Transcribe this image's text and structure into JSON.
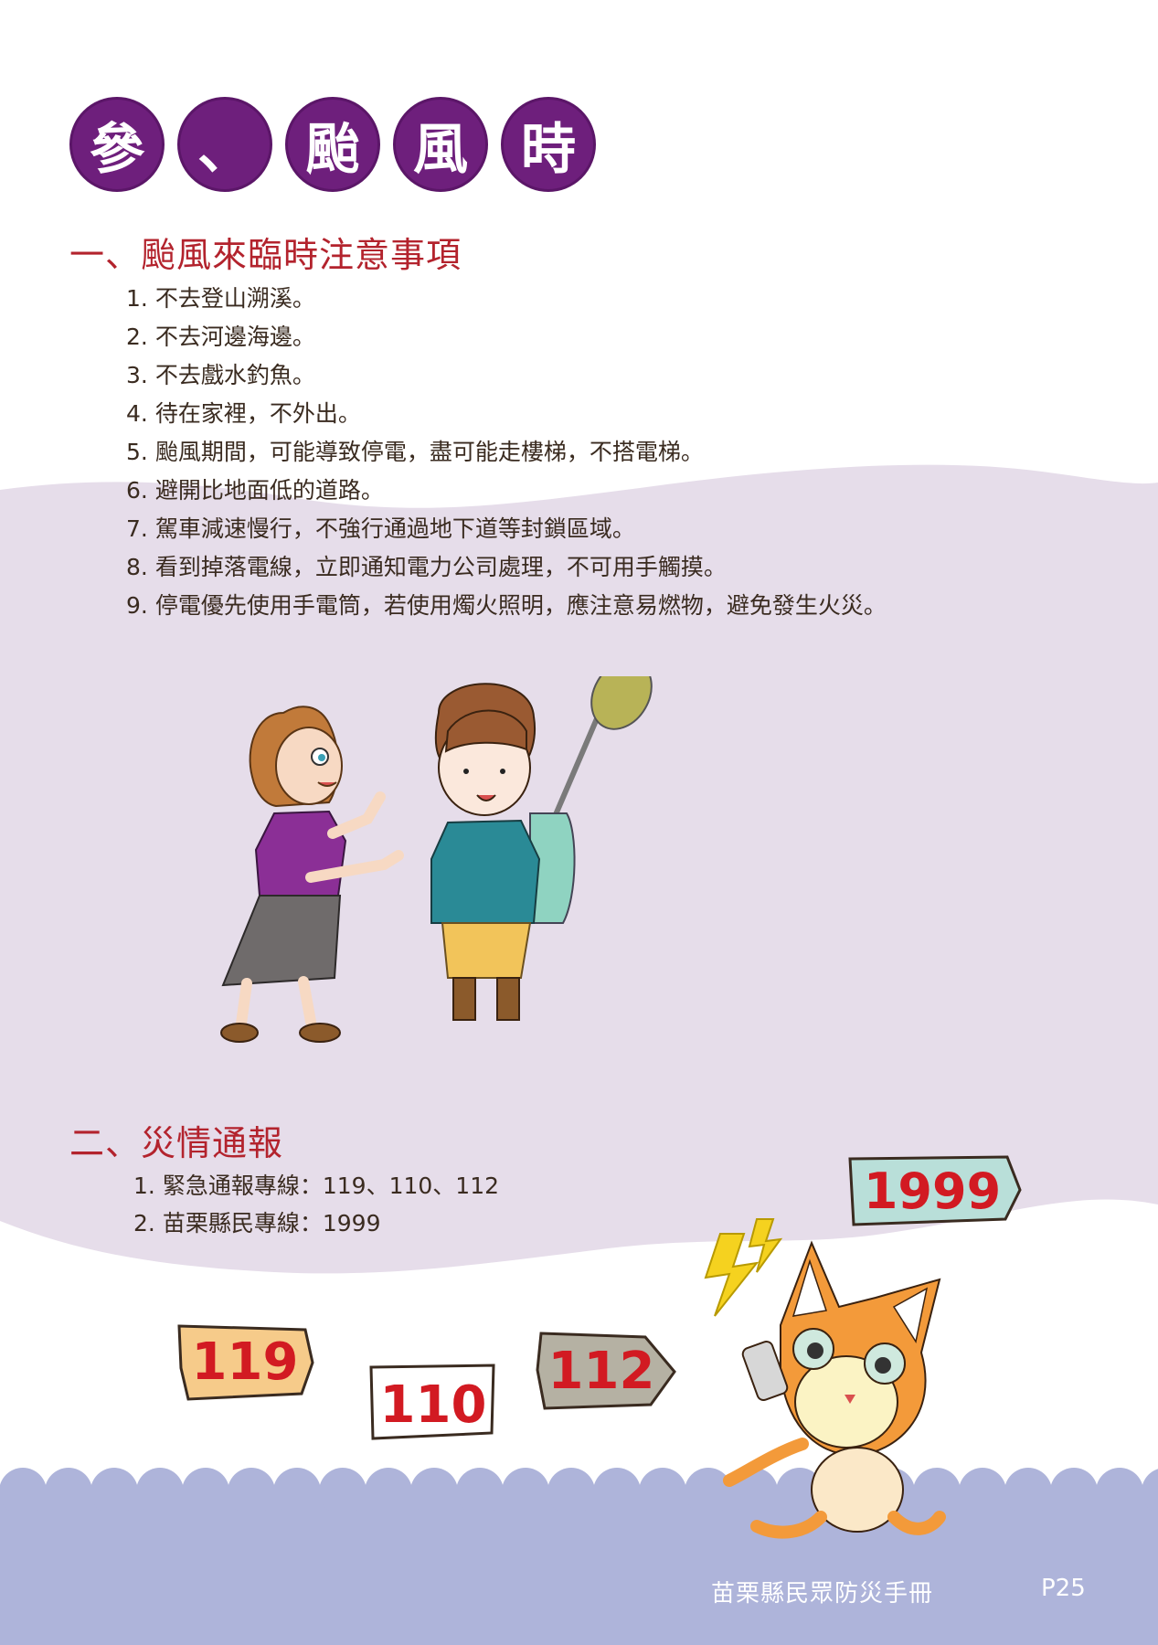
{
  "title": {
    "chars": [
      "參",
      "、",
      "颱",
      "風",
      "時"
    ]
  },
  "section1": {
    "heading": "一、颱風來臨時注意事項",
    "items": [
      {
        "num": "1.",
        "text": "不去登山溯溪。"
      },
      {
        "num": "2.",
        "text": "不去河邊海邊。"
      },
      {
        "num": "3.",
        "text": "不去戲水釣魚。"
      },
      {
        "num": "4.",
        "text": "待在家裡，不外出。"
      },
      {
        "num": "5.",
        "text": "颱風期間，可能導致停電，盡可能走樓梯，不搭電梯。"
      },
      {
        "num": "6.",
        "text": "避開比地面低的道路。"
      },
      {
        "num": "7.",
        "text": "駕車減速慢行，不強行通過地下道等封鎖區域。"
      },
      {
        "num": "8.",
        "text": "看到掉落電線，立即通知電力公司處理，不可用手觸摸。"
      },
      {
        "num": "9.",
        "text": "停電優先使用手電筒，若使用燭火照明，應注意易燃物，避免發生火災。"
      }
    ]
  },
  "section2": {
    "heading": "二、災情通報",
    "items": [
      {
        "num": "1.",
        "text": "緊急通報專線：119、110、112"
      },
      {
        "num": "2.",
        "text": "苗栗縣民專線：1999"
      }
    ]
  },
  "tags": {
    "n119": "119",
    "n110": "110",
    "n112": "112",
    "n1999": "1999"
  },
  "footer": {
    "title": "苗栗縣民眾防災手冊",
    "page": "P25"
  },
  "colors": {
    "title_circle": "#6e1f7c",
    "heading": "#b3232d",
    "wave_band": "#e6ddea",
    "sea": "#aeb4da",
    "tag_number": "#d21a22"
  }
}
